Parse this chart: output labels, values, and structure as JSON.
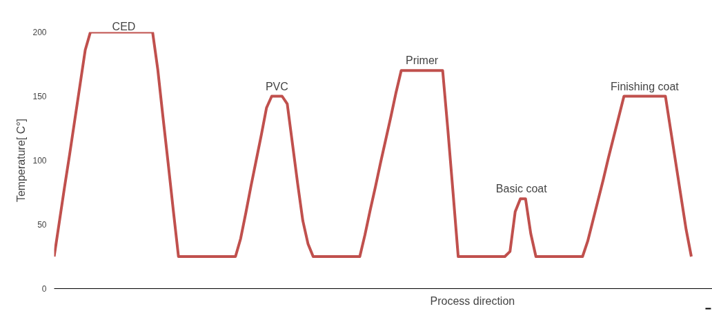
{
  "chart_data": {
    "type": "line",
    "xlabel": "Process direction",
    "ylabel": "Temperature[ C°]",
    "categories": [
      null,
      null,
      null,
      null,
      null,
      null,
      null,
      null,
      null,
      null,
      null,
      null,
      null,
      null,
      null,
      null,
      null,
      null,
      null,
      null,
      null,
      null,
      null,
      null,
      null,
      null,
      null,
      null,
      null,
      null,
      null,
      null,
      null,
      null,
      null,
      null,
      null,
      null,
      null,
      null,
      null,
      null,
      null,
      null,
      null,
      null,
      null,
      null,
      null,
      null,
      null,
      null,
      null,
      null,
      null,
      null,
      null,
      null,
      null,
      null,
      null,
      null,
      null,
      null,
      null,
      null,
      null,
      null,
      null,
      null,
      null,
      null,
      null,
      null,
      null,
      null,
      null,
      null,
      null,
      null,
      null,
      null,
      null,
      null,
      null,
      null,
      null,
      null,
      null,
      null,
      null,
      null,
      null,
      null,
      null,
      null,
      null,
      null,
      null,
      null,
      null,
      null,
      null,
      null,
      null,
      null,
      null,
      null,
      null,
      null,
      null,
      null,
      null,
      null,
      null,
      null,
      null,
      null,
      null,
      null,
      null,
      null,
      null,
      null
    ],
    "series": [
      {
        "color": "#c0504d",
        "values": [
          25,
          52,
          79,
          105,
          132,
          159,
          186,
          200,
          200,
          200,
          200,
          200,
          200,
          200,
          200,
          200,
          200,
          200,
          200,
          200,
          171,
          134,
          98,
          61,
          25,
          25,
          25,
          25,
          25,
          25,
          25,
          25,
          25,
          25,
          25,
          25,
          39,
          59,
          80,
          100,
          120,
          141,
          150,
          150,
          150,
          144,
          113,
          82,
          53,
          35,
          25,
          25,
          25,
          25,
          25,
          25,
          25,
          25,
          25,
          25,
          42,
          61,
          79,
          98,
          116,
          134,
          153,
          170,
          170,
          170,
          170,
          170,
          170,
          170,
          170,
          170,
          124,
          75,
          25,
          25,
          25,
          25,
          25,
          25,
          25,
          25,
          25,
          25,
          29,
          60,
          70,
          70,
          43,
          25,
          25,
          25,
          25,
          25,
          25,
          25,
          25,
          25,
          25,
          37,
          53,
          69,
          85,
          102,
          118,
          134,
          150,
          150,
          150,
          150,
          150,
          150,
          150,
          150,
          150,
          124,
          98,
          72,
          46,
          25
        ]
      }
    ],
    "annotations": [
      {
        "text": "CED",
        "y": 200
      },
      {
        "text": "PVC",
        "y": 150
      },
      {
        "text": "Primer",
        "y": 170
      },
      {
        "text": "Basic  coat",
        "y": 70
      },
      {
        "text": "Finishing coat",
        "y": 150
      }
    ],
    "ylim": [
      0,
      200
    ],
    "yticks": [
      0,
      50,
      100,
      150,
      200
    ],
    "grid": false
  }
}
